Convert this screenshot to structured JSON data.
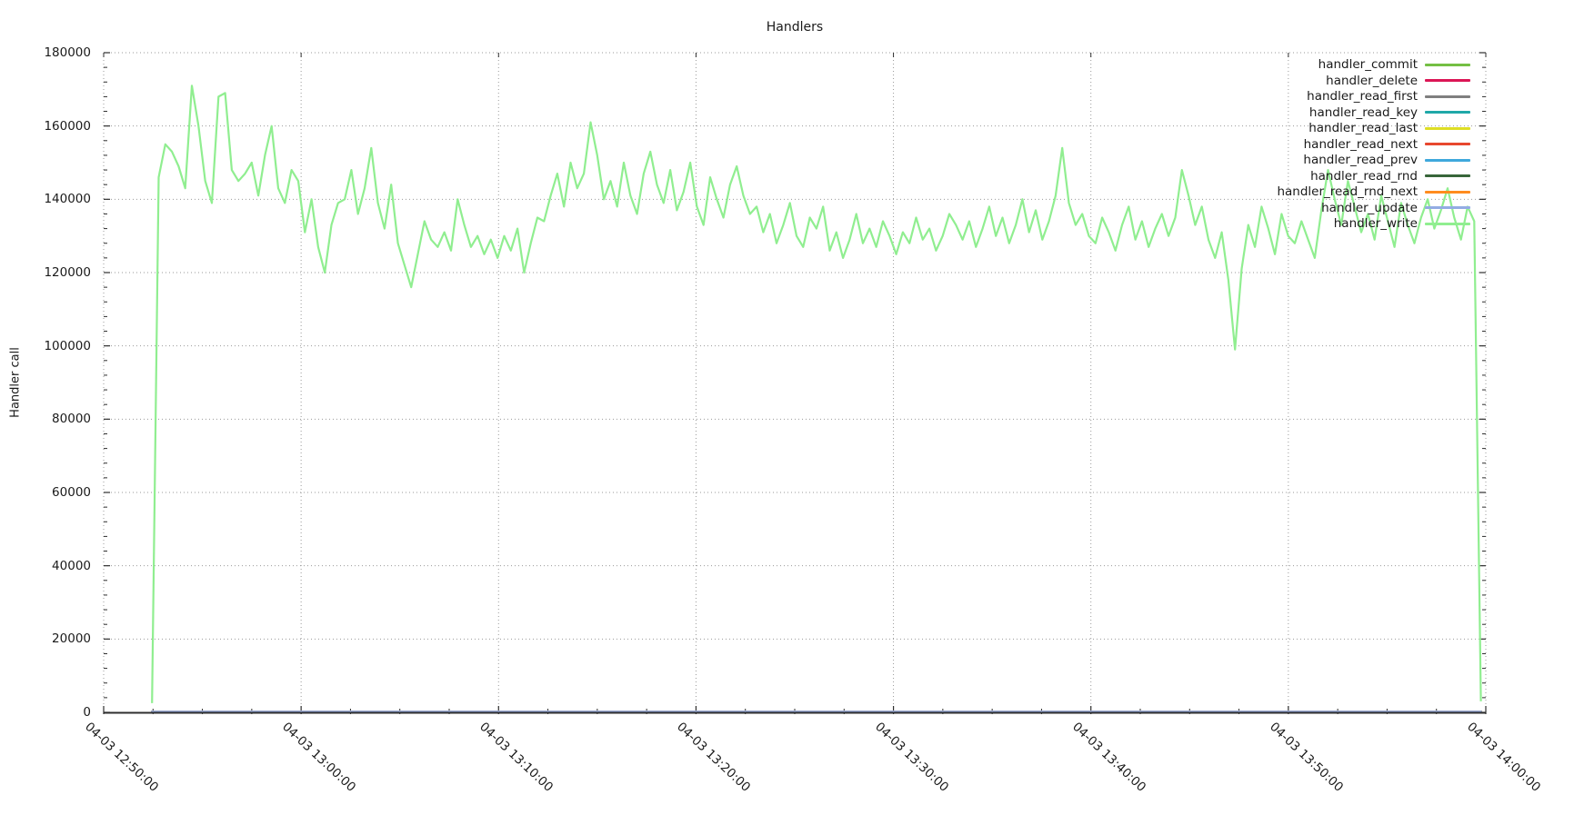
{
  "page": {
    "background": "#ffffff",
    "text_color": "#1a1a1a",
    "grid_color": "#9a9a9a",
    "axis_color": "#2e2e2e"
  },
  "chart_data": {
    "type": "line",
    "title": "Handlers",
    "xlabel": "",
    "ylabel": "Handler call",
    "grid": true,
    "legend_position": "top-right-inside",
    "ylim": [
      0,
      180000
    ],
    "y_tick_labels": [
      "0",
      "20000",
      "40000",
      "60000",
      "80000",
      "100000",
      "120000",
      "140000",
      "160000",
      "180000"
    ],
    "y_tick_values": [
      0,
      20000,
      40000,
      60000,
      80000,
      100000,
      120000,
      140000,
      160000,
      180000
    ],
    "y_minor_tick_interval": 4000,
    "x_tick_labels": [
      "04-03 12:50:00",
      "04-03 13:00:00",
      "04-03 13:10:00",
      "04-03 13:20:00",
      "04-03 13:30:00",
      "04-03 13:40:00",
      "04-03 13:50:00",
      "04-03 14:00:00"
    ],
    "x_tick_minutes": [
      0,
      10,
      20,
      30,
      40,
      50,
      60,
      70
    ],
    "x_minor_ticks_per_major": 3,
    "series": [
      {
        "name": "handler_commit",
        "color": "#74BF44",
        "flat": true,
        "flat_value": 300
      },
      {
        "name": "handler_delete",
        "color": "#DB1655",
        "flat": true,
        "flat_value": 300
      },
      {
        "name": "handler_read_first",
        "color": "#7F7F7F",
        "flat": true,
        "flat_value": 300
      },
      {
        "name": "handler_read_key",
        "color": "#1FA8A8",
        "flat": true,
        "flat_value": 300
      },
      {
        "name": "handler_read_last",
        "color": "#DEDE25",
        "flat": true,
        "flat_value": 300
      },
      {
        "name": "handler_read_next",
        "color": "#E8472E",
        "flat": true,
        "flat_value": 300
      },
      {
        "name": "handler_read_prev",
        "color": "#3FA8DC",
        "flat": true,
        "flat_value": 300
      },
      {
        "name": "handler_read_rnd",
        "color": "#38663A",
        "flat": true,
        "flat_value": 300
      },
      {
        "name": "handler_read_rnd_next",
        "color": "#FF8C1F",
        "flat": true,
        "flat_value": 300
      },
      {
        "name": "handler_update",
        "color": "#93ACE3",
        "flat": true,
        "flat_value": 300
      },
      {
        "name": "handler_write",
        "color": "#90EE90",
        "flat": false,
        "start_minute": 2.45,
        "end_minute": 69.75,
        "values": [
          2500,
          146000,
          155000,
          153000,
          149000,
          143000,
          171000,
          160000,
          145000,
          139000,
          168000,
          169000,
          148000,
          145000,
          147000,
          150000,
          141000,
          152000,
          160000,
          143000,
          139000,
          148000,
          145000,
          131000,
          140000,
          127000,
          120000,
          133000,
          139000,
          140000,
          148000,
          136000,
          143000,
          154000,
          139000,
          132000,
          144000,
          128000,
          122000,
          116000,
          125000,
          134000,
          129000,
          127000,
          131000,
          126000,
          140000,
          133000,
          127000,
          130000,
          125000,
          129000,
          124000,
          130000,
          126000,
          132000,
          120000,
          128000,
          135000,
          134000,
          141000,
          147000,
          138000,
          150000,
          143000,
          147000,
          161000,
          152000,
          140000,
          145000,
          138000,
          150000,
          141000,
          136000,
          147000,
          153000,
          144000,
          139000,
          148000,
          137000,
          142000,
          150000,
          138000,
          133000,
          146000,
          140000,
          135000,
          144000,
          149000,
          141000,
          136000,
          138000,
          131000,
          136000,
          128000,
          133000,
          139000,
          130000,
          127000,
          135000,
          132000,
          138000,
          126000,
          131000,
          124000,
          129000,
          136000,
          128000,
          132000,
          127000,
          134000,
          130000,
          125000,
          131000,
          128000,
          135000,
          129000,
          132000,
          126000,
          130000,
          136000,
          133000,
          129000,
          134000,
          127000,
          132000,
          138000,
          130000,
          135000,
          128000,
          133000,
          140000,
          131000,
          137000,
          129000,
          134000,
          141000,
          154000,
          139000,
          133000,
          136000,
          130000,
          128000,
          135000,
          131000,
          126000,
          133000,
          138000,
          129000,
          134000,
          127000,
          132000,
          136000,
          130000,
          135000,
          148000,
          141000,
          133000,
          138000,
          129000,
          124000,
          131000,
          118000,
          99000,
          121000,
          133000,
          127000,
          138000,
          132000,
          125000,
          136000,
          130000,
          128000,
          134000,
          129000,
          124000,
          137000,
          148000,
          140000,
          133000,
          145000,
          138000,
          131000,
          136000,
          129000,
          141000,
          134000,
          127000,
          139000,
          133000,
          128000,
          135000,
          140000,
          132000,
          137000,
          143000,
          135000,
          129000,
          138000,
          134000,
          3000
        ]
      }
    ]
  }
}
